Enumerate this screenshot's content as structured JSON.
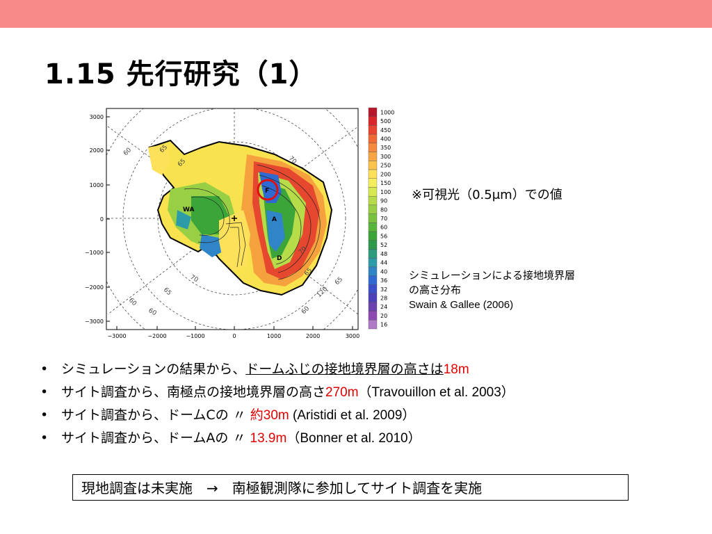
{
  "slide": {
    "title": "1.15 先行研究（1）",
    "note": "※可視光（0.5μm）での値",
    "caption_line1": "シミュレーションによる接地境界層",
    "caption_line2": "の高さ分布",
    "caption_ref": "Swain & Gallee (2006)",
    "bullets": [
      {
        "dot": "•",
        "text1": "シミュレーションの結果から、",
        "underlined": "ドームふじの接地境界層の高さは",
        "value": "18m",
        "text2": ""
      },
      {
        "dot": "•",
        "text1": "サイト調査から、南極点の接地境界層の高さ",
        "underlined": "",
        "value": "270m",
        "text2": "（Travouillon et al. 2003）"
      },
      {
        "dot": "•",
        "text1": "サイト調査から、ドームCの 〃 ",
        "underlined": "",
        "value": "約30m",
        "text2": " (Aristidi et al. 2009）"
      },
      {
        "dot": "•",
        "text1": "サイト調査から、ドームAの 〃 ",
        "underlined": "",
        "value": "13.9m",
        "text2": "（Bonner et al. 2010）"
      }
    ],
    "box_text": "現地調査は未実施　→　南極観測隊に参加してサイト調査を実施"
  },
  "map": {
    "y_ticks": [
      "3000",
      "2000",
      "1000",
      "0",
      "−1000",
      "−2000",
      "−3000"
    ],
    "x_ticks": [
      "−3000",
      "−2000",
      "−1000",
      "0",
      "1000",
      "2000",
      "3000"
    ],
    "site_labels": [
      "F",
      "A",
      "D",
      "WA"
    ],
    "lat_labels": [
      "60",
      "65",
      "65",
      "70",
      "70",
      "65",
      "60",
      "60",
      "65",
      "70",
      "65",
      "60",
      "120"
    ],
    "colorbar_labels": [
      "1000",
      "500",
      "450",
      "400",
      "350",
      "300",
      "250",
      "200",
      "150",
      "100",
      "90",
      "80",
      "70",
      "60",
      "56",
      "52",
      "48",
      "44",
      "40",
      "36",
      "32",
      "28",
      "24",
      "20",
      "16"
    ],
    "colorbar_colors": [
      "#b8162a",
      "#d8262c",
      "#e8442f",
      "#f06a35",
      "#f5883c",
      "#f8a444",
      "#fbc24c",
      "#fde15a",
      "#f5ee5c",
      "#d7e94f",
      "#b7dc49",
      "#98cf44",
      "#78c23f",
      "#58b53c",
      "#3ca53a",
      "#2d9a4a",
      "#2b9c7e",
      "#2e9ba9",
      "#2f85c8",
      "#2e6ad1",
      "#3a4fc8",
      "#4c3fba",
      "#6a3fae",
      "#8f49b4",
      "#b07ac6"
    ]
  }
}
